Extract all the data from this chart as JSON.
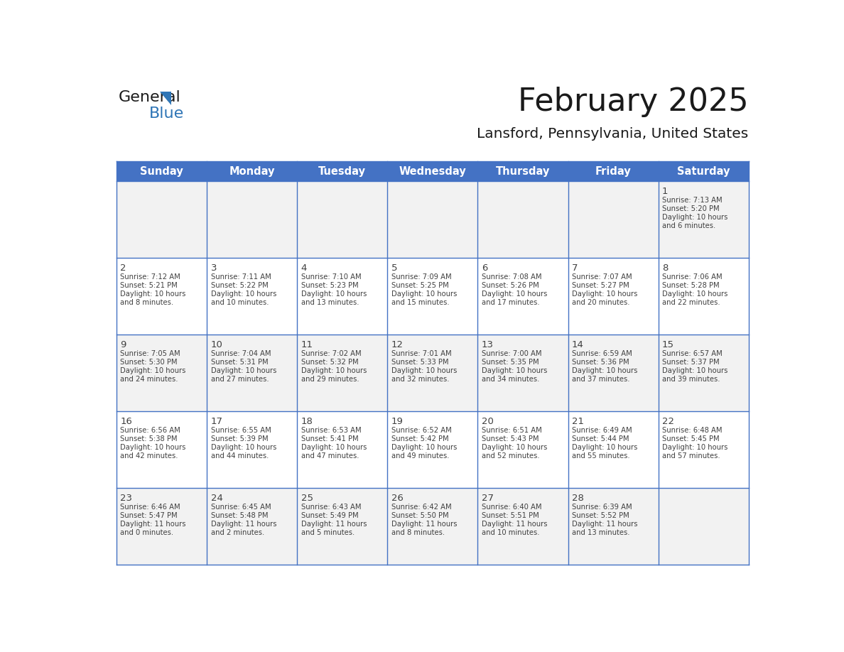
{
  "title": "February 2025",
  "subtitle": "Lansford, Pennsylvania, United States",
  "header_bg": "#4472C4",
  "header_text_color": "#FFFFFF",
  "cell_bg_white": "#FFFFFF",
  "cell_bg_gray": "#F2F2F2",
  "row_divider_color": "#4472C4",
  "text_color": "#404040",
  "day_number_color": "#404040",
  "days_of_week": [
    "Sunday",
    "Monday",
    "Tuesday",
    "Wednesday",
    "Thursday",
    "Friday",
    "Saturday"
  ],
  "calendar_data": [
    [
      null,
      null,
      null,
      null,
      null,
      null,
      {
        "day": "1",
        "sunrise": "7:13 AM",
        "sunset": "5:20 PM",
        "daylight": "10 hours",
        "daylight2": "and 6 minutes."
      }
    ],
    [
      {
        "day": "2",
        "sunrise": "7:12 AM",
        "sunset": "5:21 PM",
        "daylight": "10 hours",
        "daylight2": "and 8 minutes."
      },
      {
        "day": "3",
        "sunrise": "7:11 AM",
        "sunset": "5:22 PM",
        "daylight": "10 hours",
        "daylight2": "and 10 minutes."
      },
      {
        "day": "4",
        "sunrise": "7:10 AM",
        "sunset": "5:23 PM",
        "daylight": "10 hours",
        "daylight2": "and 13 minutes."
      },
      {
        "day": "5",
        "sunrise": "7:09 AM",
        "sunset": "5:25 PM",
        "daylight": "10 hours",
        "daylight2": "and 15 minutes."
      },
      {
        "day": "6",
        "sunrise": "7:08 AM",
        "sunset": "5:26 PM",
        "daylight": "10 hours",
        "daylight2": "and 17 minutes."
      },
      {
        "day": "7",
        "sunrise": "7:07 AM",
        "sunset": "5:27 PM",
        "daylight": "10 hours",
        "daylight2": "and 20 minutes."
      },
      {
        "day": "8",
        "sunrise": "7:06 AM",
        "sunset": "5:28 PM",
        "daylight": "10 hours",
        "daylight2": "and 22 minutes."
      }
    ],
    [
      {
        "day": "9",
        "sunrise": "7:05 AM",
        "sunset": "5:30 PM",
        "daylight": "10 hours",
        "daylight2": "and 24 minutes."
      },
      {
        "day": "10",
        "sunrise": "7:04 AM",
        "sunset": "5:31 PM",
        "daylight": "10 hours",
        "daylight2": "and 27 minutes."
      },
      {
        "day": "11",
        "sunrise": "7:02 AM",
        "sunset": "5:32 PM",
        "daylight": "10 hours",
        "daylight2": "and 29 minutes."
      },
      {
        "day": "12",
        "sunrise": "7:01 AM",
        "sunset": "5:33 PM",
        "daylight": "10 hours",
        "daylight2": "and 32 minutes."
      },
      {
        "day": "13",
        "sunrise": "7:00 AM",
        "sunset": "5:35 PM",
        "daylight": "10 hours",
        "daylight2": "and 34 minutes."
      },
      {
        "day": "14",
        "sunrise": "6:59 AM",
        "sunset": "5:36 PM",
        "daylight": "10 hours",
        "daylight2": "and 37 minutes."
      },
      {
        "day": "15",
        "sunrise": "6:57 AM",
        "sunset": "5:37 PM",
        "daylight": "10 hours",
        "daylight2": "and 39 minutes."
      }
    ],
    [
      {
        "day": "16",
        "sunrise": "6:56 AM",
        "sunset": "5:38 PM",
        "daylight": "10 hours",
        "daylight2": "and 42 minutes."
      },
      {
        "day": "17",
        "sunrise": "6:55 AM",
        "sunset": "5:39 PM",
        "daylight": "10 hours",
        "daylight2": "and 44 minutes."
      },
      {
        "day": "18",
        "sunrise": "6:53 AM",
        "sunset": "5:41 PM",
        "daylight": "10 hours",
        "daylight2": "and 47 minutes."
      },
      {
        "day": "19",
        "sunrise": "6:52 AM",
        "sunset": "5:42 PM",
        "daylight": "10 hours",
        "daylight2": "and 49 minutes."
      },
      {
        "day": "20",
        "sunrise": "6:51 AM",
        "sunset": "5:43 PM",
        "daylight": "10 hours",
        "daylight2": "and 52 minutes."
      },
      {
        "day": "21",
        "sunrise": "6:49 AM",
        "sunset": "5:44 PM",
        "daylight": "10 hours",
        "daylight2": "and 55 minutes."
      },
      {
        "day": "22",
        "sunrise": "6:48 AM",
        "sunset": "5:45 PM",
        "daylight": "10 hours",
        "daylight2": "and 57 minutes."
      }
    ],
    [
      {
        "day": "23",
        "sunrise": "6:46 AM",
        "sunset": "5:47 PM",
        "daylight": "11 hours",
        "daylight2": "and 0 minutes."
      },
      {
        "day": "24",
        "sunrise": "6:45 AM",
        "sunset": "5:48 PM",
        "daylight": "11 hours",
        "daylight2": "and 2 minutes."
      },
      {
        "day": "25",
        "sunrise": "6:43 AM",
        "sunset": "5:49 PM",
        "daylight": "11 hours",
        "daylight2": "and 5 minutes."
      },
      {
        "day": "26",
        "sunrise": "6:42 AM",
        "sunset": "5:50 PM",
        "daylight": "11 hours",
        "daylight2": "and 8 minutes."
      },
      {
        "day": "27",
        "sunrise": "6:40 AM",
        "sunset": "5:51 PM",
        "daylight": "11 hours",
        "daylight2": "and 10 minutes."
      },
      {
        "day": "28",
        "sunrise": "6:39 AM",
        "sunset": "5:52 PM",
        "daylight": "11 hours",
        "daylight2": "and 13 minutes."
      },
      null
    ]
  ],
  "logo_general_color": "#1a1a1a",
  "logo_blue_color": "#2E75B6",
  "logo_triangle_color": "#2E75B6"
}
